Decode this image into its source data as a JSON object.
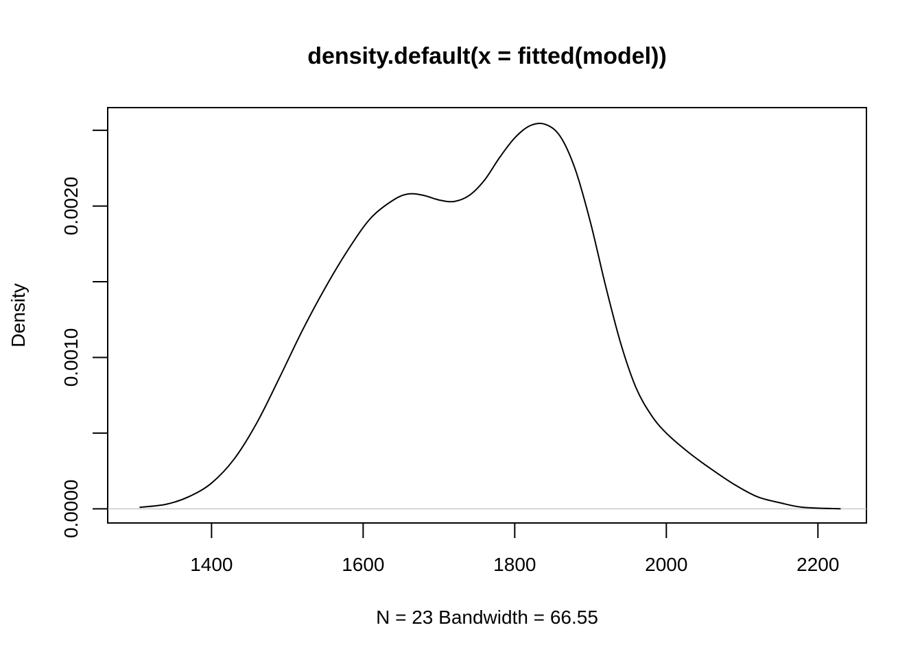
{
  "chart_data": {
    "type": "line",
    "title": "density.default(x = fitted(model))",
    "xlabel": "N = 23   Bandwidth = 66.55",
    "ylabel": "Density",
    "xlim": [
      1263,
      2264
    ],
    "ylim": [
      -9.35e-05,
      0.00265
    ],
    "x_ticks": [
      1400,
      1600,
      1800,
      2000,
      2200
    ],
    "x_tick_labels": [
      "1400",
      "1600",
      "1800",
      "2000",
      "2200"
    ],
    "y_ticks": [
      0.0,
      0.0005,
      0.001,
      0.0015,
      0.002,
      0.0025
    ],
    "y_tick_labels": [
      "0.0000",
      "",
      "0.0010",
      "",
      "0.0020",
      ""
    ],
    "baseline": 0,
    "grid": false,
    "line_color": "#000000",
    "baseline_color": "#c8c8c8",
    "series": [
      {
        "x": [
          1305,
          1340,
          1370,
          1400,
          1430,
          1460,
          1490,
          1520,
          1550,
          1580,
          1610,
          1640,
          1660,
          1680,
          1700,
          1720,
          1740,
          1760,
          1780,
          1800,
          1820,
          1840,
          1860,
          1880,
          1900,
          1920,
          1940,
          1960,
          1980,
          2000,
          2030,
          2060,
          2090,
          2120,
          2150,
          2180,
          2230
        ],
        "y": [
          1e-05,
          3e-05,
          8e-05,
          0.00017,
          0.00033,
          0.00057,
          0.00087,
          0.00118,
          0.00146,
          0.00171,
          0.00192,
          0.00204,
          0.00208,
          0.00207,
          0.00204,
          0.00203,
          0.00207,
          0.00217,
          0.00232,
          0.00245,
          0.00253,
          0.00254,
          0.00246,
          0.00224,
          0.00189,
          0.00147,
          0.00109,
          0.0008,
          0.00062,
          0.0005,
          0.00037,
          0.00026,
          0.00016,
          8e-05,
          4e-05,
          1e-05,
          0.0
        ]
      }
    ]
  }
}
